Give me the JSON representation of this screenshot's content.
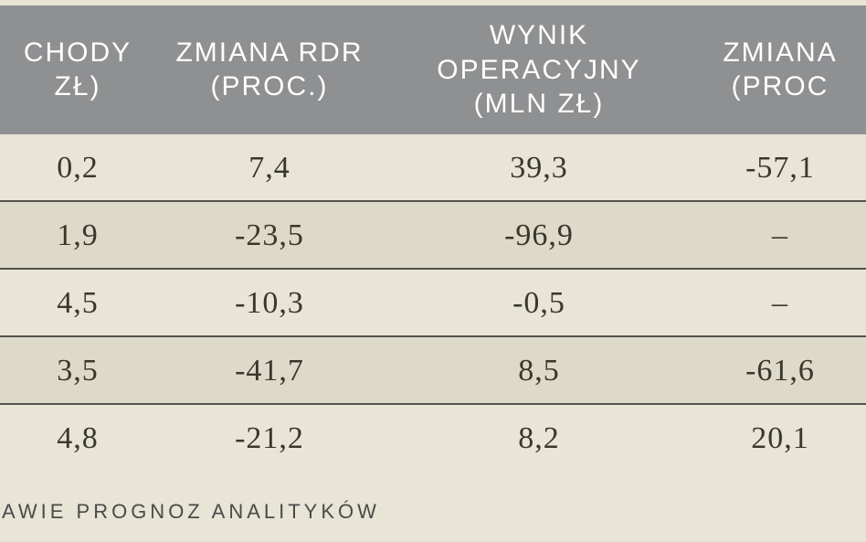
{
  "table": {
    "background_color": "#e8e4d6",
    "alt_row_color": "#dedac9",
    "header_bg": "#8f9092",
    "header_fg": "#ffffff",
    "border_color": "#54524a",
    "text_color": "#3a372b",
    "header_fontsize": 30,
    "cell_fontsize": 34,
    "columns": [
      {
        "line1": "CHODY",
        "line2": "ZŁ)"
      },
      {
        "line1": "ZMIANA RDR",
        "line2": "(PROC.)"
      },
      {
        "line1": "WYNIK OPERACYJNY",
        "line2": "(MLN ZŁ)"
      },
      {
        "line1": "ZMIANA",
        "line2": "(PROC"
      }
    ],
    "rows": [
      [
        "0,2",
        "7,4",
        "39,3",
        "-57,1"
      ],
      [
        "1,9",
        "-23,5",
        "-96,9",
        "–"
      ],
      [
        "4,5",
        "-10,3",
        "-0,5",
        "–"
      ],
      [
        "3,5",
        "-41,7",
        "8,5",
        "-61,6"
      ],
      [
        "4,8",
        "-21,2",
        "8,2",
        "20,1"
      ]
    ]
  },
  "footer": {
    "text": "AWIE PROGNOZ ANALITYKÓW"
  }
}
